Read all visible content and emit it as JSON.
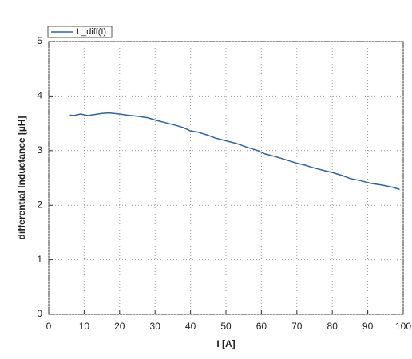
{
  "chart_data": {
    "type": "line",
    "x_label": "I [A]",
    "y_label": "differential Inductance [µH]",
    "x": [
      6,
      7,
      9,
      11,
      13,
      15,
      17,
      20,
      22,
      25,
      28,
      30,
      33,
      36,
      38,
      40,
      42,
      45,
      47,
      50,
      53,
      56,
      59,
      61,
      64,
      67,
      70,
      72,
      75,
      78,
      80,
      83,
      85,
      88,
      91,
      94,
      97,
      99
    ],
    "series": [
      {
        "name": "L_diff(I)",
        "color": "#2f62a0",
        "values": [
          3.65,
          3.64,
          3.67,
          3.64,
          3.66,
          3.68,
          3.69,
          3.67,
          3.65,
          3.63,
          3.6,
          3.56,
          3.51,
          3.46,
          3.42,
          3.36,
          3.34,
          3.28,
          3.23,
          3.18,
          3.13,
          3.06,
          3.0,
          2.94,
          2.89,
          2.83,
          2.77,
          2.74,
          2.68,
          2.63,
          2.6,
          2.54,
          2.49,
          2.45,
          2.4,
          2.37,
          2.33,
          2.29
        ]
      }
    ],
    "xlim": [
      0,
      100
    ],
    "xticks": [
      0,
      10,
      20,
      30,
      40,
      50,
      60,
      70,
      80,
      90,
      100
    ],
    "ylim": [
      0,
      5
    ],
    "yticks": [
      0,
      1,
      2,
      3,
      4,
      5
    ],
    "grid": true,
    "legend": "top-left"
  }
}
